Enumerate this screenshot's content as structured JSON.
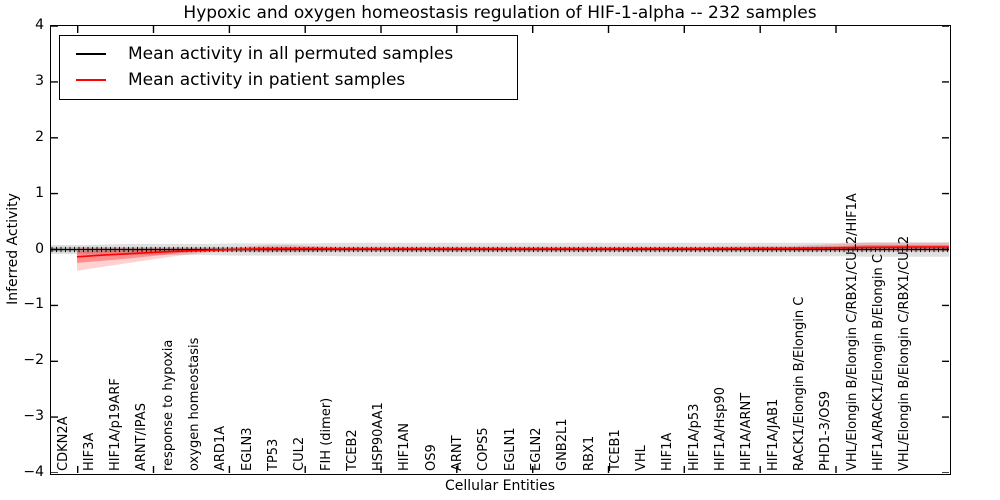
{
  "title": "Hypoxic and oxygen homeostasis regulation of HIF-1-alpha -- 232 samples",
  "legend": {
    "items": [
      {
        "label": "Mean activity in all permuted samples",
        "color": "#000000"
      },
      {
        "label": "Mean activity in patient samples",
        "color": "#ff0000"
      }
    ]
  },
  "axes": {
    "x_label": "Cellular Entities",
    "y_label": "Inferred Activity",
    "y_ticks": [
      "4",
      "3",
      "2",
      "1",
      "0",
      "−1",
      "−2",
      "−3",
      "−4"
    ],
    "y_range": [
      -4,
      4
    ]
  },
  "colors": {
    "permuted_line": "#000000",
    "patient_line": "#ff0000",
    "permuted_band_outer": "rgba(0,0,0,0.12)",
    "permuted_band_inner": "rgba(0,0,0,0.15)",
    "patient_band_outer": "rgba(255,0,0,0.18)",
    "patient_band_inner": "rgba(255,0,0,0.32)"
  },
  "chart_data": {
    "type": "line",
    "title": "Hypoxic and oxygen homeostasis regulation of HIF-1-alpha -- 232 samples",
    "xlabel": "Cellular Entities",
    "ylabel": "Inferred Activity",
    "ylim": [
      -4,
      4
    ],
    "grid": false,
    "legend_position": "upper left",
    "categories": [
      "CDKN2A",
      "HIF3A",
      "HIF1A/p19ARF",
      "ARNT/IPAS",
      "response to hypoxia",
      "oxygen homeostasis",
      "ARD1A",
      "EGLN3",
      "TP53",
      "CUL2",
      "FIH (dimer)",
      "TCEB2",
      "HSP90AA1",
      "HIF1AN",
      "OS9",
      "ARNT",
      "COPS5",
      "EGLN1",
      "EGLN2",
      "GNB2L1",
      "RBX1",
      "TCEB1",
      "VHL",
      "HIF1A",
      "HIF1A/p53",
      "HIF1A/Hsp90",
      "HIF1A/ARNT",
      "HIF1A/JAB1",
      "RACK1/Elongin B/Elongin C",
      "PHD1-3/OS9",
      "VHL/Elongin B/Elongin C/RBX1/CUL2/HIF1A",
      "HIF1A/RACK1/Elongin B/Elongin C",
      "VHL/Elongin B/Elongin C/RBX1/CUL2"
    ],
    "series": [
      {
        "name": "Mean activity in all permuted samples",
        "color": "#000000",
        "extend_left": true,
        "extend_right": true,
        "values": [
          0,
          0,
          0,
          0,
          0,
          0,
          0,
          0,
          0,
          0,
          0,
          0,
          0,
          0,
          0,
          0,
          0,
          0,
          0,
          0,
          0,
          0,
          0,
          0,
          0,
          0,
          0,
          0,
          0,
          0,
          0,
          0,
          0
        ]
      },
      {
        "name": "Mean activity in patient samples",
        "color": "#ff0000",
        "extend_left": false,
        "extend_right": true,
        "values": [
          -0.13,
          -0.1,
          -0.075,
          -0.05,
          -0.028,
          -0.012,
          0,
          0.01,
          0.015,
          0.015,
          0.01,
          0.01,
          0.01,
          0.01,
          0.01,
          0.01,
          0.01,
          0.01,
          0.01,
          0.01,
          0.01,
          0.012,
          0.015,
          0.015,
          0.015,
          0.018,
          0.02,
          0.02,
          0.025,
          0.03,
          0.04,
          0.042,
          0.045
        ]
      }
    ],
    "bands": [
      {
        "name": "permuted-outer",
        "color": "rgba(0,0,0,0.12)",
        "extend_left": true,
        "extend_right": true,
        "low": [
          -0.08,
          -0.09,
          -0.1,
          -0.1,
          -0.1,
          -0.1,
          -0.11,
          -0.11,
          -0.11,
          -0.11,
          -0.12,
          -0.12,
          -0.12,
          -0.12,
          -0.12,
          -0.12,
          -0.12,
          -0.12,
          -0.12,
          -0.12,
          -0.12,
          -0.12,
          -0.12,
          -0.12,
          -0.12,
          -0.12,
          -0.12,
          -0.12,
          -0.12,
          -0.12,
          -0.13,
          -0.13,
          -0.13
        ],
        "high": [
          0.08,
          0.09,
          0.1,
          0.1,
          0.1,
          0.1,
          0.11,
          0.11,
          0.11,
          0.11,
          0.12,
          0.12,
          0.12,
          0.12,
          0.12,
          0.12,
          0.12,
          0.12,
          0.12,
          0.12,
          0.12,
          0.12,
          0.12,
          0.12,
          0.12,
          0.12,
          0.12,
          0.12,
          0.12,
          0.12,
          0.13,
          0.13,
          0.13
        ]
      },
      {
        "name": "permuted-inner",
        "color": "rgba(0,0,0,0.15)",
        "extend_left": true,
        "extend_right": true,
        "low": [
          -0.04,
          -0.04,
          -0.04,
          -0.04,
          -0.04,
          -0.04,
          -0.04,
          -0.04,
          -0.04,
          -0.04,
          -0.04,
          -0.04,
          -0.04,
          -0.04,
          -0.04,
          -0.04,
          -0.04,
          -0.04,
          -0.04,
          -0.04,
          -0.04,
          -0.04,
          -0.04,
          -0.04,
          -0.04,
          -0.04,
          -0.04,
          -0.04,
          -0.04,
          -0.04,
          -0.04,
          -0.04,
          -0.04
        ],
        "high": [
          0.04,
          0.04,
          0.04,
          0.04,
          0.04,
          0.04,
          0.04,
          0.04,
          0.04,
          0.04,
          0.04,
          0.04,
          0.04,
          0.04,
          0.04,
          0.04,
          0.04,
          0.04,
          0.04,
          0.04,
          0.04,
          0.04,
          0.04,
          0.04,
          0.04,
          0.04,
          0.04,
          0.04,
          0.04,
          0.04,
          0.04,
          0.04,
          0.04
        ]
      },
      {
        "name": "patient-outer",
        "color": "rgba(255,0,0,0.18)",
        "extend_left": false,
        "extend_right": true,
        "low": [
          -0.38,
          -0.31,
          -0.24,
          -0.17,
          -0.1,
          -0.05,
          -0.04,
          -0.05,
          -0.05,
          -0.04,
          -0.03,
          -0.03,
          -0.03,
          -0.03,
          -0.03,
          -0.03,
          -0.03,
          -0.03,
          -0.03,
          -0.03,
          -0.03,
          -0.03,
          -0.028,
          -0.028,
          -0.028,
          -0.025,
          -0.025,
          -0.025,
          -0.03,
          -0.02,
          -0.02,
          -0.02,
          -0.02
        ],
        "high": [
          0.04,
          0.03,
          0.03,
          0.03,
          0.03,
          0.03,
          0.04,
          0.07,
          0.08,
          0.06,
          0.05,
          0.05,
          0.05,
          0.05,
          0.05,
          0.05,
          0.05,
          0.05,
          0.05,
          0.05,
          0.05,
          0.05,
          0.05,
          0.05,
          0.05,
          0.055,
          0.06,
          0.06,
          0.08,
          0.1,
          0.12,
          0.12,
          0.12
        ]
      },
      {
        "name": "patient-inner",
        "color": "rgba(255,0,0,0.32)",
        "extend_left": false,
        "extend_right": true,
        "low": [
          -0.24,
          -0.2,
          -0.16,
          -0.11,
          -0.06,
          -0.03,
          -0.02,
          -0.02,
          -0.02,
          -0.015,
          -0.01,
          -0.01,
          -0.01,
          -0.01,
          -0.01,
          -0.01,
          -0.01,
          -0.01,
          -0.01,
          -0.01,
          -0.01,
          -0.01,
          -0.008,
          -0.008,
          -0.008,
          -0.006,
          -0.005,
          -0.005,
          -0.005,
          -0.002,
          0,
          0,
          0
        ],
        "high": [
          -0.03,
          -0.025,
          -0.02,
          -0.01,
          0,
          0.01,
          0.02,
          0.04,
          0.045,
          0.04,
          0.03,
          0.03,
          0.03,
          0.03,
          0.03,
          0.03,
          0.03,
          0.03,
          0.03,
          0.03,
          0.03,
          0.03,
          0.032,
          0.032,
          0.032,
          0.035,
          0.04,
          0.04,
          0.05,
          0.06,
          0.08,
          0.08,
          0.08
        ]
      }
    ]
  }
}
